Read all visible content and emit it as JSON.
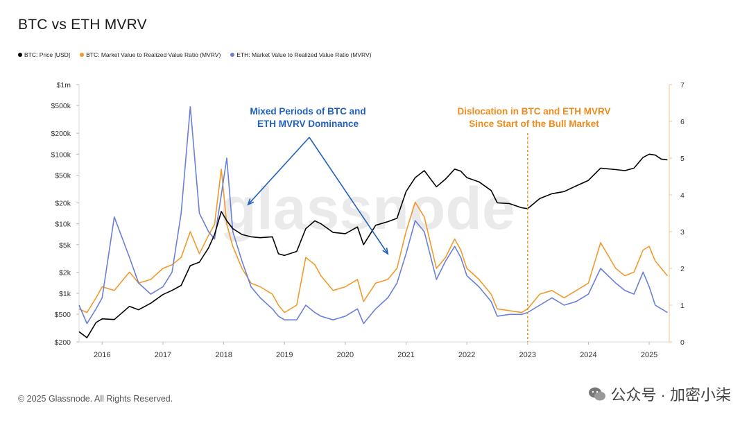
{
  "page": {
    "title": "BTC vs ETH MVRV",
    "footer": "© 2025 Glassnode. All Rights Reserved.",
    "wechat_label": "公众号 · 加密小柒",
    "watermark": "glassnode",
    "icons": [
      "wechat-icon"
    ]
  },
  "chart_data": {
    "type": "line",
    "title": "BTC vs ETH MVRV",
    "legend": [
      {
        "name": "BTC: Price [USD]",
        "color": "#000000"
      },
      {
        "name": "BTC: Market Value to Realized Value Ratio (MVRV)",
        "color": "#f09a2c"
      },
      {
        "name": "ETH: Market Value to Realized Value Ratio (MVRV)",
        "color": "#6b7fd7"
      }
    ],
    "legend_position": "top-left",
    "x_ticks": [
      "2016",
      "2017",
      "2018",
      "2019",
      "2020",
      "2021",
      "2022",
      "2023",
      "2024",
      "2025"
    ],
    "xlim": [
      2015.62,
      2025.33
    ],
    "y_left": {
      "scale": "log",
      "ticks": [
        "$200",
        "$500",
        "$1k",
        "$2k",
        "$5k",
        "$10k",
        "$20k",
        "$50k",
        "$100k",
        "$200k",
        "$500k",
        "$1m"
      ],
      "tick_values": [
        200,
        500,
        1000,
        2000,
        5000,
        10000,
        20000,
        50000,
        100000,
        200000,
        500000,
        1000000
      ],
      "ylim": [
        200,
        1000000
      ]
    },
    "y_right": {
      "scale": "linear",
      "ticks": [
        "0",
        "1",
        "2",
        "3",
        "4",
        "5",
        "6",
        "7"
      ],
      "ylim": [
        0,
        7
      ]
    },
    "grid": false,
    "annotations": [
      {
        "lines": [
          "Mixed Periods of BTC and",
          "ETH MVRV Dominance"
        ],
        "color": "#1f5fc2",
        "arrows_to_x": [
          2018.4,
          2020.7
        ]
      },
      {
        "lines": [
          "Dislocation in BTC and ETH MVRV",
          "Since Start of the Bull Market"
        ],
        "color": "#f08a1c",
        "marker_x": 2023.0
      }
    ],
    "series": [
      {
        "name": "BTC: Price [USD]",
        "axis": "left",
        "color": "#000000",
        "x": [
          2015.62,
          2015.75,
          2015.9,
          2016.0,
          2016.2,
          2016.45,
          2016.6,
          2016.8,
          2017.0,
          2017.15,
          2017.3,
          2017.45,
          2017.6,
          2017.75,
          2017.85,
          2017.96,
          2018.05,
          2018.15,
          2018.3,
          2018.45,
          2018.6,
          2018.8,
          2018.9,
          2019.0,
          2019.2,
          2019.35,
          2019.5,
          2019.6,
          2019.8,
          2020.0,
          2020.2,
          2020.3,
          2020.5,
          2020.7,
          2020.85,
          2021.0,
          2021.15,
          2021.3,
          2021.5,
          2021.65,
          2021.8,
          2021.9,
          2022.0,
          2022.2,
          2022.4,
          2022.5,
          2022.7,
          2022.9,
          2023.0,
          2023.2,
          2023.4,
          2023.6,
          2023.8,
          2024.0,
          2024.2,
          2024.45,
          2024.6,
          2024.75,
          2024.9,
          2025.0,
          2025.1,
          2025.2,
          2025.3
        ],
        "y": [
          280,
          230,
          380,
          430,
          420,
          650,
          580,
          720,
          960,
          1100,
          1300,
          2500,
          2800,
          4500,
          7000,
          15000,
          11000,
          8500,
          7000,
          6500,
          6300,
          6500,
          3700,
          3500,
          4000,
          8500,
          11000,
          10000,
          7500,
          7200,
          9000,
          5000,
          9500,
          10700,
          12000,
          29000,
          46000,
          58000,
          34000,
          44000,
          61000,
          57000,
          46000,
          40000,
          30000,
          20000,
          19500,
          17000,
          16500,
          23000,
          27000,
          29000,
          35000,
          42000,
          63000,
          60000,
          58000,
          63000,
          90000,
          100000,
          97000,
          85000,
          83000
        ]
      },
      {
        "name": "BTC: Market Value to Realized Value Ratio (MVRV)",
        "axis": "right",
        "color": "#f09a2c",
        "x": [
          2015.62,
          2015.75,
          2015.9,
          2016.0,
          2016.2,
          2016.45,
          2016.6,
          2016.8,
          2017.0,
          2017.15,
          2017.3,
          2017.45,
          2017.6,
          2017.75,
          2017.85,
          2017.96,
          2018.05,
          2018.15,
          2018.3,
          2018.45,
          2018.6,
          2018.8,
          2018.9,
          2019.0,
          2019.2,
          2019.35,
          2019.5,
          2019.6,
          2019.8,
          2020.0,
          2020.2,
          2020.3,
          2020.5,
          2020.7,
          2020.85,
          2021.0,
          2021.15,
          2021.3,
          2021.5,
          2021.65,
          2021.8,
          2021.9,
          2022.0,
          2022.2,
          2022.4,
          2022.5,
          2022.7,
          2022.9,
          2023.0,
          2023.2,
          2023.4,
          2023.6,
          2023.8,
          2024.0,
          2024.2,
          2024.45,
          2024.6,
          2024.75,
          2024.9,
          2025.0,
          2025.1,
          2025.2,
          2025.3
        ],
        "y": [
          0.9,
          0.8,
          1.2,
          1.5,
          1.4,
          1.9,
          1.6,
          1.7,
          2.0,
          2.1,
          2.3,
          3.0,
          2.4,
          2.9,
          3.2,
          4.7,
          3.2,
          2.6,
          2.0,
          1.6,
          1.5,
          1.3,
          1.0,
          0.8,
          1.0,
          2.3,
          2.1,
          1.8,
          1.4,
          1.5,
          1.7,
          1.1,
          1.6,
          1.7,
          2.0,
          3.0,
          3.8,
          3.4,
          2.0,
          2.3,
          2.8,
          2.5,
          2.0,
          1.7,
          1.3,
          0.9,
          0.85,
          0.8,
          0.9,
          1.3,
          1.4,
          1.2,
          1.4,
          1.6,
          2.7,
          2.0,
          1.8,
          1.9,
          2.5,
          2.6,
          2.2,
          2.0,
          1.8
        ]
      },
      {
        "name": "ETH: Market Value to Realized Value Ratio (MVRV)",
        "axis": "right",
        "color": "#6b7fd7",
        "x": [
          2015.62,
          2015.75,
          2015.9,
          2016.0,
          2016.2,
          2016.45,
          2016.6,
          2016.8,
          2017.0,
          2017.15,
          2017.3,
          2017.45,
          2017.6,
          2017.75,
          2017.85,
          2017.96,
          2018.05,
          2018.15,
          2018.3,
          2018.45,
          2018.6,
          2018.8,
          2018.9,
          2019.0,
          2019.2,
          2019.35,
          2019.5,
          2019.6,
          2019.8,
          2020.0,
          2020.2,
          2020.3,
          2020.5,
          2020.7,
          2020.85,
          2021.0,
          2021.15,
          2021.3,
          2021.5,
          2021.65,
          2021.8,
          2021.9,
          2022.0,
          2022.2,
          2022.4,
          2022.5,
          2022.7,
          2022.9,
          2023.0,
          2023.2,
          2023.4,
          2023.6,
          2023.8,
          2024.0,
          2024.2,
          2024.45,
          2024.6,
          2024.75,
          2024.9,
          2025.0,
          2025.1,
          2025.2,
          2025.3
        ],
        "y": [
          1.0,
          0.5,
          0.9,
          1.2,
          3.4,
          2.3,
          1.6,
          1.3,
          1.5,
          1.9,
          3.5,
          6.4,
          3.5,
          3.0,
          2.8,
          4.0,
          5.0,
          3.0,
          2.2,
          1.5,
          1.2,
          0.9,
          0.7,
          0.6,
          0.6,
          1.0,
          0.8,
          0.7,
          0.6,
          0.7,
          0.9,
          0.5,
          0.9,
          1.2,
          1.6,
          2.4,
          3.3,
          3.0,
          1.7,
          2.2,
          2.6,
          2.3,
          1.8,
          1.5,
          1.1,
          0.7,
          0.75,
          0.75,
          0.8,
          1.0,
          1.2,
          1.0,
          1.1,
          1.3,
          2.0,
          1.6,
          1.4,
          1.3,
          1.9,
          1.5,
          1.0,
          0.9,
          0.8
        ]
      }
    ]
  }
}
